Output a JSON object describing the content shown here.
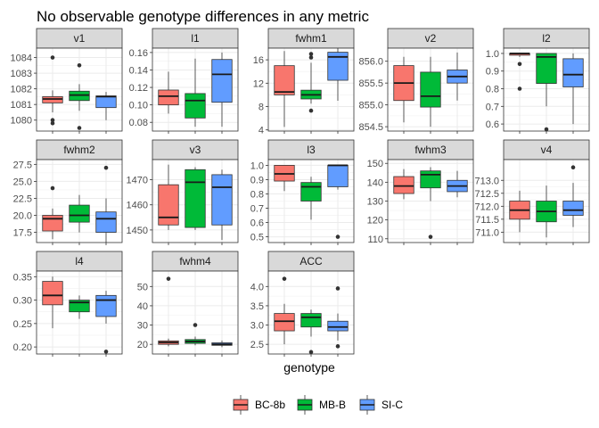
{
  "chart_data": {
    "type": "boxplot",
    "title": "No observable genotype differences in any metric",
    "xlabel": "genotype",
    "ylabel": "",
    "legend": {
      "position": "bottom",
      "entries": [
        {
          "name": "BC-8b",
          "color": "#F8766D"
        },
        {
          "name": "MB-B",
          "color": "#00BA38"
        },
        {
          "name": "SI-C",
          "color": "#619CFF"
        }
      ]
    },
    "grid": true,
    "facets": [
      {
        "name": "v1",
        "ylim": [
          1079.3,
          1084.6
        ],
        "ticks": [
          1080,
          1081,
          1082,
          1083,
          1084
        ],
        "tick_labels": [
          "1080",
          "1081",
          "1082",
          "1083",
          "1084"
        ],
        "boxes": [
          {
            "genotype": "BC-8b",
            "min": 1080.5,
            "q1": 1081.1,
            "median": 1081.35,
            "q3": 1081.5,
            "max": 1081.9,
            "outliers": [
              1084.0,
              1080.0,
              1079.8
            ]
          },
          {
            "genotype": "MB-B",
            "min": 1080.6,
            "q1": 1081.25,
            "median": 1081.6,
            "q3": 1081.85,
            "max": 1082.3,
            "outliers": [
              1083.5,
              1079.5
            ]
          },
          {
            "genotype": "SI-C",
            "min": 1080.0,
            "q1": 1080.8,
            "median": 1081.5,
            "q3": 1081.55,
            "max": 1081.8,
            "outliers": []
          }
        ]
      },
      {
        "name": "l1",
        "ylim": [
          0.07,
          0.165
        ],
        "ticks": [
          0.08,
          0.1,
          0.12,
          0.14,
          0.16
        ],
        "tick_labels": [
          "0.08",
          "0.10",
          "0.12",
          "0.14",
          "0.16"
        ],
        "boxes": [
          {
            "genotype": "BC-8b",
            "min": 0.09,
            "q1": 0.1,
            "median": 0.11,
            "q3": 0.117,
            "max": 0.138,
            "outliers": []
          },
          {
            "genotype": "MB-B",
            "min": 0.075,
            "q1": 0.085,
            "median": 0.105,
            "q3": 0.113,
            "max": 0.153,
            "outliers": []
          },
          {
            "genotype": "SI-C",
            "min": 0.075,
            "q1": 0.103,
            "median": 0.135,
            "q3": 0.152,
            "max": 0.16,
            "outliers": []
          }
        ]
      },
      {
        "name": "fwhm1",
        "ylim": [
          3.8,
          18.0
        ],
        "ticks": [
          4,
          8,
          12,
          16
        ],
        "tick_labels": [
          "4",
          "8",
          "12",
          "16"
        ],
        "boxes": [
          {
            "genotype": "BC-8b",
            "min": 4.5,
            "q1": 10.0,
            "median": 10.5,
            "q3": 15.0,
            "max": 17.5,
            "outliers": []
          },
          {
            "genotype": "MB-B",
            "min": 8.5,
            "q1": 9.3,
            "median": 10.0,
            "q3": 10.8,
            "max": 15.5,
            "outliers": [
              17.0,
              16.4,
              7.3
            ]
          },
          {
            "genotype": "SI-C",
            "min": 9.0,
            "q1": 12.5,
            "median": 16.5,
            "q3": 17.3,
            "max": 18.0,
            "outliers": []
          }
        ]
      },
      {
        "name": "v2",
        "ylim": [
          854.4,
          856.3
        ],
        "ticks": [
          854.5,
          855.0,
          855.5,
          856.0
        ],
        "tick_labels": [
          "854.5",
          "855.0",
          "855.5",
          "856.0"
        ],
        "boxes": [
          {
            "genotype": "BC-8b",
            "min": 854.6,
            "q1": 855.1,
            "median": 855.5,
            "q3": 855.9,
            "max": 856.1,
            "outliers": []
          },
          {
            "genotype": "MB-B",
            "min": 854.5,
            "q1": 854.95,
            "median": 855.2,
            "q3": 855.75,
            "max": 856.1,
            "outliers": []
          },
          {
            "genotype": "SI-C",
            "min": 855.1,
            "q1": 855.5,
            "median": 855.65,
            "q3": 855.8,
            "max": 856.2,
            "outliers": []
          }
        ]
      },
      {
        "name": "l2",
        "ylim": [
          0.56,
          1.03
        ],
        "ticks": [
          0.6,
          0.7,
          0.8,
          0.9,
          1.0
        ],
        "tick_labels": [
          "0.6",
          "0.7",
          "0.8",
          "0.9",
          "1.0"
        ],
        "boxes": [
          {
            "genotype": "BC-8b",
            "min": 0.98,
            "q1": 0.99,
            "median": 1.0,
            "q3": 1.0,
            "max": 1.0,
            "outliers": [
              0.94,
              0.8
            ]
          },
          {
            "genotype": "MB-B",
            "min": 0.7,
            "q1": 0.83,
            "median": 0.98,
            "q3": 1.0,
            "max": 1.0,
            "outliers": [
              0.57
            ]
          },
          {
            "genotype": "SI-C",
            "min": 0.6,
            "q1": 0.81,
            "median": 0.88,
            "q3": 0.97,
            "max": 1.0,
            "outliers": []
          }
        ]
      },
      {
        "name": "fwhm2",
        "ylim": [
          16.0,
          28.2
        ],
        "ticks": [
          17.5,
          20.0,
          22.5,
          25.0,
          27.5
        ],
        "tick_labels": [
          "17.5",
          "20.0",
          "22.5",
          "25.0",
          "27.5"
        ],
        "boxes": [
          {
            "genotype": "BC-8b",
            "min": 16.5,
            "q1": 17.7,
            "median": 19.5,
            "q3": 20.0,
            "max": 21.0,
            "outliers": [
              24.0
            ]
          },
          {
            "genotype": "MB-B",
            "min": 17.5,
            "q1": 19.0,
            "median": 20.0,
            "q3": 21.5,
            "max": 23.0,
            "outliers": []
          },
          {
            "genotype": "SI-C",
            "min": 16.0,
            "q1": 17.5,
            "median": 19.5,
            "q3": 20.5,
            "max": 22.5,
            "outliers": [
              27.0
            ]
          }
        ]
      },
      {
        "name": "v3",
        "ylim": [
          1445,
          1478
        ],
        "ticks": [
          1450,
          1460,
          1470
        ],
        "tick_labels": [
          "1450",
          "1460",
          "1470"
        ],
        "boxes": [
          {
            "genotype": "BC-8b",
            "min": 1450,
            "q1": 1452,
            "median": 1455,
            "q3": 1468,
            "max": 1476,
            "outliers": []
          },
          {
            "genotype": "MB-B",
            "min": 1450,
            "q1": 1451,
            "median": 1469,
            "q3": 1474,
            "max": 1475,
            "outliers": []
          },
          {
            "genotype": "SI-C",
            "min": 1446,
            "q1": 1452,
            "median": 1467,
            "q3": 1472,
            "max": 1474,
            "outliers": []
          }
        ]
      },
      {
        "name": "l3",
        "ylim": [
          0.46,
          1.04
        ],
        "ticks": [
          0.5,
          0.6,
          0.7,
          0.8,
          0.9,
          1.0
        ],
        "tick_labels": [
          "0.5",
          "0.6",
          "0.7",
          "0.8",
          "0.9",
          "1.0"
        ],
        "boxes": [
          {
            "genotype": "BC-8b",
            "min": 0.82,
            "q1": 0.89,
            "median": 0.94,
            "q3": 1.0,
            "max": 1.0,
            "outliers": []
          },
          {
            "genotype": "MB-B",
            "min": 0.62,
            "q1": 0.75,
            "median": 0.85,
            "q3": 0.88,
            "max": 0.92,
            "outliers": []
          },
          {
            "genotype": "SI-C",
            "min": 0.83,
            "q1": 0.85,
            "median": 1.0,
            "q3": 1.0,
            "max": 1.0,
            "outliers": [
              0.5
            ]
          }
        ]
      },
      {
        "name": "fwhm3",
        "ylim": [
          108,
          152
        ],
        "ticks": [
          110,
          120,
          130,
          140,
          150
        ],
        "tick_labels": [
          "110",
          "120",
          "130",
          "140",
          "150"
        ],
        "boxes": [
          {
            "genotype": "BC-8b",
            "min": 131,
            "q1": 134,
            "median": 138,
            "q3": 143,
            "max": 147,
            "outliers": []
          },
          {
            "genotype": "MB-B",
            "min": 130,
            "q1": 137,
            "median": 144,
            "q3": 146,
            "max": 148,
            "outliers": [
              111
            ]
          },
          {
            "genotype": "SI-C",
            "min": 132,
            "q1": 135,
            "median": 138,
            "q3": 141,
            "max": 146,
            "outliers": []
          }
        ]
      },
      {
        "name": "v4",
        "ylim": [
          710.6,
          713.8
        ],
        "ticks": [
          711.0,
          711.5,
          712.0,
          712.5,
          713.0
        ],
        "tick_labels": [
          "711.0",
          "711.5",
          "712.0",
          "712.5",
          "713.0"
        ],
        "boxes": [
          {
            "genotype": "BC-8b",
            "min": 711.0,
            "q1": 711.5,
            "median": 711.85,
            "q3": 712.2,
            "max": 712.6,
            "outliers": []
          },
          {
            "genotype": "MB-B",
            "min": 710.8,
            "q1": 711.4,
            "median": 711.8,
            "q3": 712.2,
            "max": 712.8,
            "outliers": []
          },
          {
            "genotype": "SI-C",
            "min": 711.2,
            "q1": 711.65,
            "median": 711.85,
            "q3": 712.2,
            "max": 712.9,
            "outliers": [
              713.5
            ]
          }
        ]
      },
      {
        "name": "l4",
        "ylim": [
          0.185,
          0.362
        ],
        "ticks": [
          0.2,
          0.25,
          0.3,
          0.35
        ],
        "tick_labels": [
          "0.20",
          "0.25",
          "0.30",
          "0.35"
        ],
        "boxes": [
          {
            "genotype": "BC-8b",
            "min": 0.24,
            "q1": 0.29,
            "median": 0.31,
            "q3": 0.34,
            "max": 0.35,
            "outliers": []
          },
          {
            "genotype": "MB-B",
            "min": 0.26,
            "q1": 0.275,
            "median": 0.295,
            "q3": 0.3,
            "max": 0.31,
            "outliers": []
          },
          {
            "genotype": "SI-C",
            "min": 0.25,
            "q1": 0.265,
            "median": 0.3,
            "q3": 0.31,
            "max": 0.32,
            "outliers": [
              0.19
            ]
          }
        ]
      },
      {
        "name": "fwhm4",
        "ylim": [
          15,
          58
        ],
        "ticks": [
          20,
          30,
          40,
          50
        ],
        "tick_labels": [
          "20",
          "30",
          "40",
          "50"
        ],
        "boxes": [
          {
            "genotype": "BC-8b",
            "min": 19,
            "q1": 20,
            "median": 21,
            "q3": 21.8,
            "max": 23,
            "outliers": [
              54
            ]
          },
          {
            "genotype": "MB-B",
            "min": 19.5,
            "q1": 20.5,
            "median": 21.5,
            "q3": 22.5,
            "max": 24,
            "outliers": [
              30
            ]
          },
          {
            "genotype": "SI-C",
            "min": 18.5,
            "q1": 19.5,
            "median": 20,
            "q3": 20.8,
            "max": 22,
            "outliers": []
          }
        ]
      },
      {
        "name": "ACC",
        "ylim": [
          2.25,
          4.4
        ],
        "ticks": [
          2.5,
          3.0,
          3.5,
          4.0
        ],
        "tick_labels": [
          "2.5",
          "3.0",
          "3.5",
          "4.0"
        ],
        "boxes": [
          {
            "genotype": "BC-8b",
            "min": 2.5,
            "q1": 2.85,
            "median": 3.1,
            "q3": 3.3,
            "max": 3.55,
            "outliers": [
              4.2
            ]
          },
          {
            "genotype": "MB-B",
            "min": 2.7,
            "q1": 2.95,
            "median": 3.2,
            "q3": 3.3,
            "max": 3.4,
            "outliers": [
              2.3
            ]
          },
          {
            "genotype": "SI-C",
            "min": 2.6,
            "q1": 2.85,
            "median": 2.95,
            "q3": 3.1,
            "max": 3.3,
            "outliers": [
              3.95,
              2.45
            ]
          }
        ]
      }
    ]
  }
}
